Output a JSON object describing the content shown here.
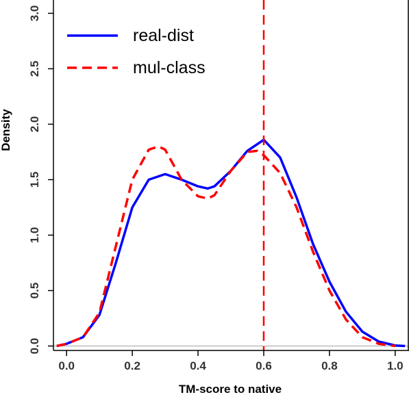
{
  "chart_data": {
    "type": "line",
    "title": "",
    "xlabel": "TM-score to native",
    "ylabel": "Density",
    "xlim": [
      -0.04,
      1.04
    ],
    "ylim": [
      -0.04,
      3.12
    ],
    "xticks": [
      "0.0",
      "0.2",
      "0.4",
      "0.6",
      "0.8",
      "1.0"
    ],
    "yticks": [
      "0.0",
      "0.5",
      "1.0",
      "1.5",
      "2.0",
      "2.5",
      "3.0"
    ],
    "grid": false,
    "legend_position": "top-left",
    "baseline": 0,
    "vline": {
      "x": 0.6,
      "color": "#ff0000",
      "style": "dashed"
    },
    "series": [
      {
        "name": "real-dist",
        "color": "#0000ff",
        "style": "solid",
        "x": [
          -0.03,
          0.0,
          0.05,
          0.1,
          0.15,
          0.2,
          0.25,
          0.3,
          0.35,
          0.4,
          0.43,
          0.45,
          0.5,
          0.55,
          0.6,
          0.65,
          0.7,
          0.75,
          0.8,
          0.85,
          0.9,
          0.95,
          1.0,
          1.03
        ],
        "y": [
          0.0,
          0.02,
          0.08,
          0.28,
          0.75,
          1.25,
          1.5,
          1.55,
          1.5,
          1.44,
          1.42,
          1.44,
          1.58,
          1.76,
          1.86,
          1.7,
          1.34,
          0.92,
          0.58,
          0.31,
          0.13,
          0.04,
          0.005,
          0.0
        ]
      },
      {
        "name": "mul-class",
        "color": "#ff0000",
        "style": "dashed",
        "x": [
          -0.03,
          0.0,
          0.05,
          0.1,
          0.15,
          0.2,
          0.25,
          0.28,
          0.3,
          0.35,
          0.4,
          0.43,
          0.45,
          0.5,
          0.55,
          0.58,
          0.6,
          0.65,
          0.7,
          0.75,
          0.8,
          0.85,
          0.9,
          0.95,
          1.0
        ],
        "y": [
          0.0,
          0.02,
          0.08,
          0.3,
          0.9,
          1.5,
          1.77,
          1.8,
          1.77,
          1.5,
          1.35,
          1.33,
          1.36,
          1.58,
          1.75,
          1.76,
          1.72,
          1.56,
          1.25,
          0.85,
          0.5,
          0.24,
          0.08,
          0.02,
          0.0
        ]
      }
    ]
  }
}
